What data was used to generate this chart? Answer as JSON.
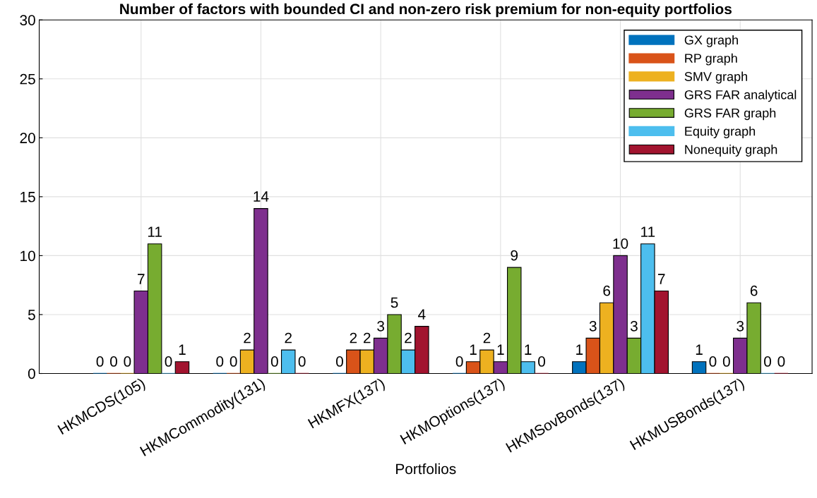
{
  "chart_data": {
    "type": "bar",
    "title": "Number of factors with bounded CI and non-zero risk premium for non-equity portfolios",
    "xlabel": "Portfolios",
    "categories": [
      "HKMCDS(105)",
      "HKMCommodity(131)",
      "HKMFX(137)",
      "HKMOptions(137)",
      "HKMSovBonds(137)",
      "HKMUSBonds(137)"
    ],
    "series": [
      {
        "name": "GX graph",
        "color": "#0072bd",
        "values": [
          0,
          0,
          0,
          0,
          1,
          1
        ]
      },
      {
        "name": "RP graph",
        "color": "#d95319",
        "values": [
          0,
          0,
          2,
          1,
          3,
          0
        ]
      },
      {
        "name": "SMV graph",
        "color": "#edb120",
        "values": [
          0,
          2,
          2,
          2,
          6,
          0
        ]
      },
      {
        "name": "GRS FAR analytical",
        "color": "#7e2f8e",
        "values": [
          7,
          14,
          3,
          1,
          10,
          3
        ]
      },
      {
        "name": "GRS FAR graph",
        "color": "#77ac30",
        "values": [
          11,
          0,
          5,
          9,
          3,
          6
        ]
      },
      {
        "name": "Equity graph",
        "color": "#4dbeee",
        "values": [
          0,
          2,
          2,
          1,
          11,
          0
        ]
      },
      {
        "name": "Nonequity graph",
        "color": "#a2142f",
        "values": [
          1,
          0,
          4,
          0,
          7,
          0
        ]
      }
    ],
    "ylim": [
      0,
      30
    ],
    "yticks": [
      0,
      5,
      10,
      15,
      20,
      25,
      30
    ],
    "grid": true,
    "legend": "top right",
    "data_labels": true
  }
}
